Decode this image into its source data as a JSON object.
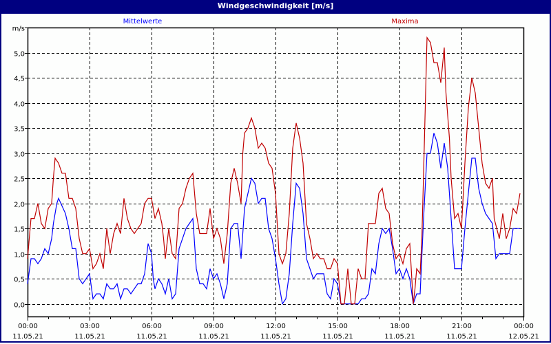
{
  "window": {
    "title": "Windgeschwindigkeit [m/s]"
  },
  "chart_data": {
    "type": "line",
    "title": "Windgeschwindigkeit [m/s]",
    "ylabel": "m/s",
    "ylim": [
      -0.25,
      5.5
    ],
    "yticks": [
      {
        "v": 0,
        "label": "0,0"
      },
      {
        "v": 0.5,
        "label": "0,5"
      },
      {
        "v": 1,
        "label": "1,0"
      },
      {
        "v": 1.5,
        "label": "1,5"
      },
      {
        "v": 2,
        "label": "2,0"
      },
      {
        "v": 2.5,
        "label": "2,5"
      },
      {
        "v": 3,
        "label": "3,0"
      },
      {
        "v": 3.5,
        "label": "3,5"
      },
      {
        "v": 4,
        "label": "4,0"
      },
      {
        "v": 4.5,
        "label": "4,5"
      },
      {
        "v": 5,
        "label": "5,0"
      },
      {
        "v": 5.5,
        "label": "m/s"
      }
    ],
    "xrange": [
      "11.05.21 00:00",
      "12.05.21 00:00"
    ],
    "xticks": [
      {
        "time": "00:00",
        "date": "11.05.21"
      },
      {
        "time": "03:00",
        "date": "11.05.21"
      },
      {
        "time": "06:00",
        "date": "11.05.21"
      },
      {
        "time": "09:00",
        "date": "11.05.21"
      },
      {
        "time": "12:00",
        "date": "11.05.21"
      },
      {
        "time": "15:00",
        "date": "11.05.21"
      },
      {
        "time": "18:00",
        "date": "11.05.21"
      },
      {
        "time": "21:00",
        "date": "11.05.21"
      },
      {
        "time": "00:00",
        "date": "12.05.21"
      }
    ],
    "grid": true,
    "series": [
      {
        "name": "Mittelwerte",
        "color": "#0000ff",
        "points": [
          [
            "00:00",
            0.4
          ],
          [
            "00:10",
            0.9
          ],
          [
            "00:20",
            0.9
          ],
          [
            "00:30",
            0.8
          ],
          [
            "00:40",
            0.9
          ],
          [
            "00:50",
            1.1
          ],
          [
            "01:00",
            1.0
          ],
          [
            "01:10",
            1.3
          ],
          [
            "01:15",
            1.6
          ],
          [
            "01:25",
            2.0
          ],
          [
            "01:30",
            2.1
          ],
          [
            "01:50",
            1.8
          ],
          [
            "02:00",
            1.5
          ],
          [
            "02:10",
            1.1
          ],
          [
            "02:20",
            1.1
          ],
          [
            "02:30",
            0.5
          ],
          [
            "02:40",
            0.4
          ],
          [
            "03:00",
            0.6
          ],
          [
            "03:10",
            0.1
          ],
          [
            "03:20",
            0.2
          ],
          [
            "03:30",
            0.2
          ],
          [
            "03:40",
            0.1
          ],
          [
            "03:50",
            0.4
          ],
          [
            "04:00",
            0.3
          ],
          [
            "04:10",
            0.3
          ],
          [
            "04:20",
            0.4
          ],
          [
            "04:30",
            0.1
          ],
          [
            "04:40",
            0.3
          ],
          [
            "04:50",
            0.3
          ],
          [
            "05:00",
            0.2
          ],
          [
            "05:20",
            0.4
          ],
          [
            "05:30",
            0.4
          ],
          [
            "05:40",
            0.6
          ],
          [
            "05:50",
            1.2
          ],
          [
            "06:00",
            1.0
          ],
          [
            "06:05",
            0.5
          ],
          [
            "06:10",
            0.3
          ],
          [
            "06:20",
            0.5
          ],
          [
            "06:30",
            0.4
          ],
          [
            "06:40",
            0.2
          ],
          [
            "06:50",
            0.5
          ],
          [
            "07:00",
            0.1
          ],
          [
            "07:10",
            0.2
          ],
          [
            "07:20",
            1.1
          ],
          [
            "07:30",
            1.3
          ],
          [
            "07:40",
            1.5
          ],
          [
            "07:50",
            1.6
          ],
          [
            "08:00",
            1.7
          ],
          [
            "08:10",
            0.7
          ],
          [
            "08:20",
            0.4
          ],
          [
            "08:30",
            0.4
          ],
          [
            "08:40",
            0.3
          ],
          [
            "08:50",
            0.7
          ],
          [
            "09:00",
            0.5
          ],
          [
            "09:10",
            0.6
          ],
          [
            "09:20",
            0.4
          ],
          [
            "09:30",
            0.1
          ],
          [
            "09:40",
            0.4
          ],
          [
            "09:50",
            1.5
          ],
          [
            "10:00",
            1.6
          ],
          [
            "10:10",
            1.6
          ],
          [
            "10:20",
            0.9
          ],
          [
            "10:30",
            1.9
          ],
          [
            "10:40",
            2.2
          ],
          [
            "10:50",
            2.5
          ],
          [
            "11:00",
            2.4
          ],
          [
            "11:10",
            2.0
          ],
          [
            "11:20",
            2.1
          ],
          [
            "11:30",
            2.1
          ],
          [
            "11:40",
            1.5
          ],
          [
            "11:50",
            1.3
          ],
          [
            "12:00",
            0.9
          ],
          [
            "12:10",
            0.4
          ],
          [
            "12:20",
            0.0
          ],
          [
            "12:30",
            0.1
          ],
          [
            "12:40",
            0.6
          ],
          [
            "12:50",
            1.6
          ],
          [
            "13:00",
            2.4
          ],
          [
            "13:10",
            2.3
          ],
          [
            "13:20",
            1.8
          ],
          [
            "13:30",
            0.9
          ],
          [
            "13:40",
            0.7
          ],
          [
            "13:50",
            0.5
          ],
          [
            "14:00",
            0.6
          ],
          [
            "14:20",
            0.6
          ],
          [
            "14:30",
            0.2
          ],
          [
            "14:40",
            0.1
          ],
          [
            "14:50",
            0.5
          ],
          [
            "15:00",
            0.4
          ],
          [
            "15:10",
            0.0
          ],
          [
            "16:00",
            0.0
          ],
          [
            "16:10",
            0.1
          ],
          [
            "16:20",
            0.1
          ],
          [
            "16:30",
            0.2
          ],
          [
            "16:40",
            0.7
          ],
          [
            "16:50",
            0.6
          ],
          [
            "17:00",
            1.2
          ],
          [
            "17:10",
            1.5
          ],
          [
            "17:20",
            1.4
          ],
          [
            "17:30",
            1.5
          ],
          [
            "17:40",
            1.1
          ],
          [
            "17:50",
            0.6
          ],
          [
            "18:00",
            0.7
          ],
          [
            "18:10",
            0.5
          ],
          [
            "18:20",
            0.7
          ],
          [
            "18:30",
            0.5
          ],
          [
            "18:40",
            0.0
          ],
          [
            "18:50",
            0.2
          ],
          [
            "19:00",
            0.2
          ],
          [
            "19:10",
            1.7
          ],
          [
            "19:20",
            3.0
          ],
          [
            "19:30",
            3.0
          ],
          [
            "19:40",
            3.4
          ],
          [
            "19:50",
            3.2
          ],
          [
            "20:00",
            2.7
          ],
          [
            "20:10",
            3.2
          ],
          [
            "20:20",
            2.7
          ],
          [
            "20:30",
            1.7
          ],
          [
            "20:40",
            0.7
          ],
          [
            "21:00",
            0.7
          ],
          [
            "21:10",
            1.5
          ],
          [
            "21:20",
            2.2
          ],
          [
            "21:30",
            2.9
          ],
          [
            "21:40",
            2.9
          ],
          [
            "21:50",
            2.3
          ],
          [
            "22:00",
            2.0
          ],
          [
            "22:10",
            1.8
          ],
          [
            "22:20",
            1.7
          ],
          [
            "22:30",
            1.6
          ],
          [
            "22:40",
            0.9
          ],
          [
            "22:50",
            1.0
          ],
          [
            "23:20",
            1.0
          ],
          [
            "23:30",
            1.5
          ],
          [
            "23:50",
            1.5
          ]
        ]
      },
      {
        "name": "Maxima",
        "color": "#c00000",
        "points": [
          [
            "00:00",
            0.9
          ],
          [
            "00:10",
            1.7
          ],
          [
            "00:20",
            1.7
          ],
          [
            "00:30",
            2.0
          ],
          [
            "00:40",
            1.6
          ],
          [
            "00:50",
            1.5
          ],
          [
            "01:00",
            1.9
          ],
          [
            "01:10",
            2.0
          ],
          [
            "01:15",
            2.5
          ],
          [
            "01:20",
            2.9
          ],
          [
            "01:30",
            2.8
          ],
          [
            "01:40",
            2.6
          ],
          [
            "01:50",
            2.6
          ],
          [
            "02:00",
            2.1
          ],
          [
            "02:10",
            2.1
          ],
          [
            "02:20",
            1.9
          ],
          [
            "02:30",
            1.3
          ],
          [
            "02:40",
            1.0
          ],
          [
            "02:50",
            1.0
          ],
          [
            "03:00",
            1.1
          ],
          [
            "03:10",
            0.7
          ],
          [
            "03:20",
            0.8
          ],
          [
            "03:30",
            1.0
          ],
          [
            "03:40",
            0.7
          ],
          [
            "03:50",
            1.5
          ],
          [
            "04:00",
            1.0
          ],
          [
            "04:10",
            1.4
          ],
          [
            "04:20",
            1.6
          ],
          [
            "04:30",
            1.4
          ],
          [
            "04:40",
            2.1
          ],
          [
            "04:50",
            1.7
          ],
          [
            "05:00",
            1.5
          ],
          [
            "05:10",
            1.4
          ],
          [
            "05:20",
            1.5
          ],
          [
            "05:30",
            1.6
          ],
          [
            "05:40",
            2.0
          ],
          [
            "05:50",
            2.1
          ],
          [
            "06:00",
            2.1
          ],
          [
            "06:10",
            1.7
          ],
          [
            "06:20",
            1.9
          ],
          [
            "06:30",
            1.6
          ],
          [
            "06:35",
            1.3
          ],
          [
            "06:40",
            0.9
          ],
          [
            "06:50",
            1.5
          ],
          [
            "07:00",
            1.0
          ],
          [
            "07:10",
            0.9
          ],
          [
            "07:20",
            1.9
          ],
          [
            "07:30",
            2.0
          ],
          [
            "07:40",
            2.3
          ],
          [
            "07:50",
            2.5
          ],
          [
            "08:00",
            2.6
          ],
          [
            "08:10",
            1.8
          ],
          [
            "08:20",
            1.4
          ],
          [
            "08:40",
            1.4
          ],
          [
            "08:50",
            1.9
          ],
          [
            "09:00",
            1.3
          ],
          [
            "09:10",
            1.5
          ],
          [
            "09:20",
            1.3
          ],
          [
            "09:30",
            0.8
          ],
          [
            "09:40",
            1.4
          ],
          [
            "09:50",
            2.4
          ],
          [
            "10:00",
            2.7
          ],
          [
            "10:10",
            2.4
          ],
          [
            "10:20",
            2.0
          ],
          [
            "10:25",
            3.0
          ],
          [
            "10:30",
            3.4
          ],
          [
            "10:40",
            3.5
          ],
          [
            "10:50",
            3.7
          ],
          [
            "11:00",
            3.5
          ],
          [
            "11:10",
            3.1
          ],
          [
            "11:20",
            3.2
          ],
          [
            "11:30",
            3.1
          ],
          [
            "11:40",
            2.8
          ],
          [
            "11:50",
            2.7
          ],
          [
            "12:00",
            2.2
          ],
          [
            "12:10",
            1.0
          ],
          [
            "12:20",
            0.8
          ],
          [
            "12:30",
            1.0
          ],
          [
            "12:40",
            1.8
          ],
          [
            "12:50",
            3.1
          ],
          [
            "13:00",
            3.6
          ],
          [
            "13:10",
            3.3
          ],
          [
            "13:20",
            2.8
          ],
          [
            "13:30",
            1.6
          ],
          [
            "13:40",
            1.3
          ],
          [
            "13:50",
            0.9
          ],
          [
            "14:00",
            1.0
          ],
          [
            "14:10",
            0.9
          ],
          [
            "14:20",
            0.9
          ],
          [
            "14:30",
            0.7
          ],
          [
            "14:40",
            0.7
          ],
          [
            "14:50",
            0.9
          ],
          [
            "15:00",
            0.8
          ],
          [
            "15:10",
            0.0
          ],
          [
            "15:20",
            0.0
          ],
          [
            "15:30",
            0.7
          ],
          [
            "15:40",
            0.0
          ],
          [
            "15:50",
            0.0
          ],
          [
            "16:00",
            0.7
          ],
          [
            "16:10",
            0.5
          ],
          [
            "16:20",
            0.5
          ],
          [
            "16:30",
            1.6
          ],
          [
            "16:50",
            1.6
          ],
          [
            "17:00",
            2.2
          ],
          [
            "17:10",
            2.3
          ],
          [
            "17:20",
            1.9
          ],
          [
            "17:30",
            1.8
          ],
          [
            "17:40",
            1.2
          ],
          [
            "17:50",
            0.9
          ],
          [
            "18:00",
            1.0
          ],
          [
            "18:10",
            0.8
          ],
          [
            "18:20",
            1.1
          ],
          [
            "18:30",
            1.2
          ],
          [
            "18:35",
            0.6
          ],
          [
            "18:40",
            0.0
          ],
          [
            "18:45",
            0.3
          ],
          [
            "18:50",
            0.7
          ],
          [
            "19:00",
            0.6
          ],
          [
            "19:05",
            1.3
          ],
          [
            "19:10",
            2.6
          ],
          [
            "19:20",
            5.3
          ],
          [
            "19:30",
            5.2
          ],
          [
            "19:40",
            4.8
          ],
          [
            "19:50",
            4.8
          ],
          [
            "20:00",
            4.4
          ],
          [
            "20:10",
            5.1
          ],
          [
            "20:15",
            4.2
          ],
          [
            "20:25",
            3.3
          ],
          [
            "20:30",
            2.5
          ],
          [
            "20:40",
            1.7
          ],
          [
            "20:50",
            1.8
          ],
          [
            "21:00",
            1.5
          ],
          [
            "21:10",
            2.8
          ],
          [
            "21:20",
            3.9
          ],
          [
            "21:30",
            4.5
          ],
          [
            "21:40",
            4.2
          ],
          [
            "21:50",
            3.5
          ],
          [
            "22:00",
            2.8
          ],
          [
            "22:10",
            2.4
          ],
          [
            "22:20",
            2.3
          ],
          [
            "22:30",
            2.5
          ],
          [
            "22:35",
            1.7
          ],
          [
            "22:50",
            1.3
          ],
          [
            "23:00",
            1.8
          ],
          [
            "23:10",
            1.3
          ],
          [
            "23:20",
            1.5
          ],
          [
            "23:30",
            1.9
          ],
          [
            "23:40",
            1.8
          ],
          [
            "23:50",
            2.2
          ]
        ]
      }
    ]
  }
}
